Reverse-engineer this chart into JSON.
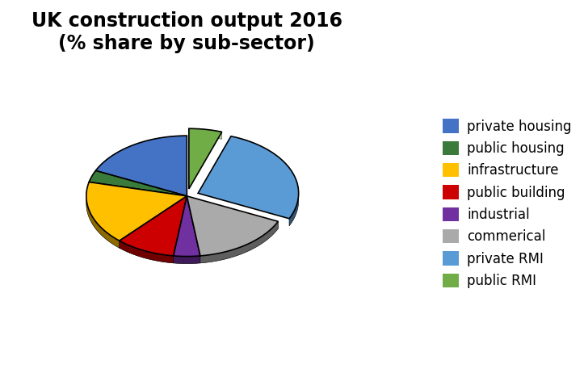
{
  "title": "UK construction output 2016\n(% share by sub-sector)",
  "labels": [
    "private housing",
    "public housing",
    "infrastructure",
    "public building",
    "industrial",
    "commerical",
    "private RMI",
    "public RMI"
  ],
  "values": [
    17,
    3,
    16,
    9,
    4,
    15,
    25,
    5
  ],
  "colors": [
    "#4472C4",
    "#3A7A3A",
    "#FFC000",
    "#CC0000",
    "#7030A0",
    "#AAAAAA",
    "#5B9BD5",
    "#70AD47"
  ],
  "legend_colors": [
    "#4472C4",
    "#3A7A3A",
    "#FFC000",
    "#CC0000",
    "#7030A0",
    "#AAAAAA",
    "#5B9BD5",
    "#70AD47"
  ],
  "explode": [
    0.0,
    0.0,
    0.0,
    0.0,
    0.0,
    0.0,
    0.12,
    0.12
  ],
  "startangle": 90,
  "background_color": "#ffffff",
  "title_fontsize": 17,
  "title_fontweight": "bold",
  "legend_fontsize": 12,
  "depth": 0.12,
  "shadow_color": "#111111"
}
